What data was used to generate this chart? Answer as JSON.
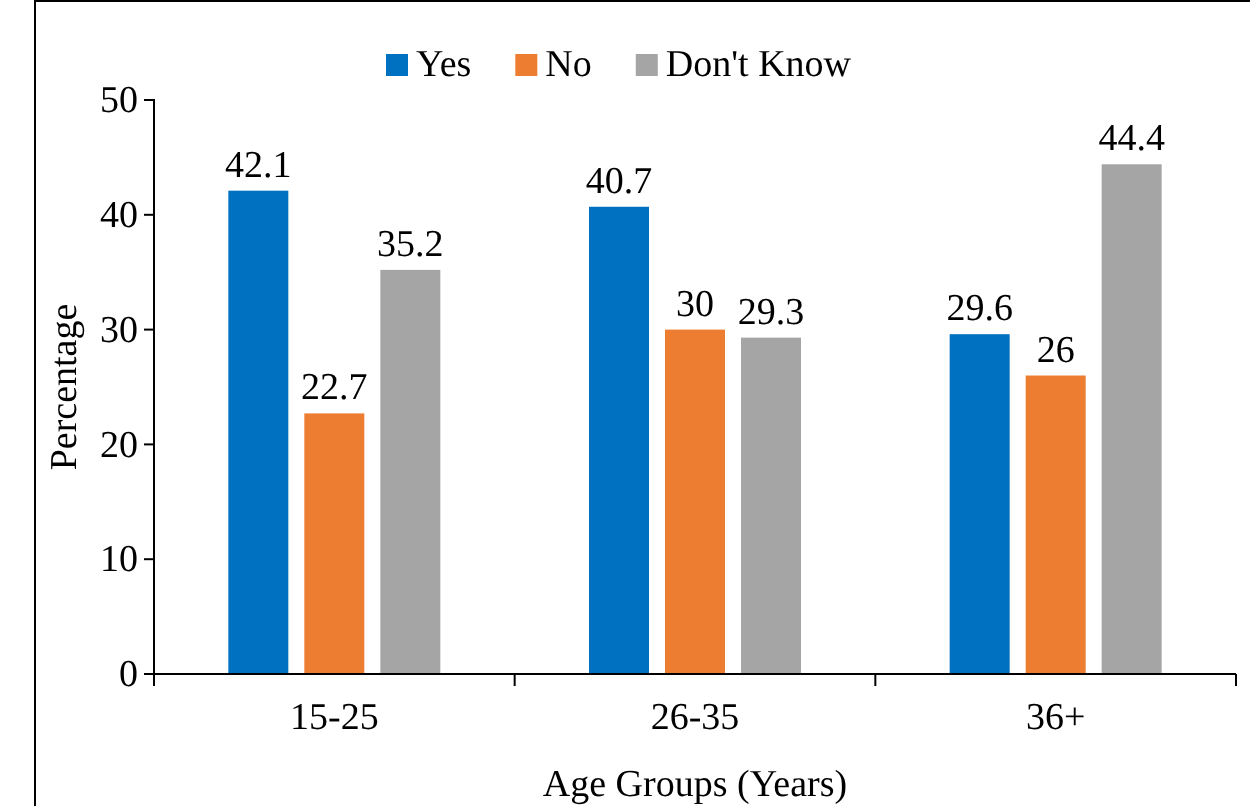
{
  "chart_data": {
    "type": "bar",
    "xlabel": "Age Groups (Years)",
    "ylabel": "Percentage",
    "categories": [
      "15-25",
      "26-35",
      "36+"
    ],
    "series": [
      {
        "name": "Yes",
        "color": "#0070c0",
        "values": [
          42.1,
          40.7,
          29.6
        ]
      },
      {
        "name": "No",
        "color": "#ed7d31",
        "values": [
          22.7,
          30,
          26
        ]
      },
      {
        "name": "Don't Know",
        "color": "#a5a5a5",
        "values": [
          35.2,
          29.3,
          44.4
        ]
      }
    ],
    "ylim": [
      0,
      50
    ],
    "yticks": [
      0,
      10,
      20,
      30,
      40,
      50
    ],
    "data_labels": true,
    "legend": "top",
    "grid": false
  }
}
